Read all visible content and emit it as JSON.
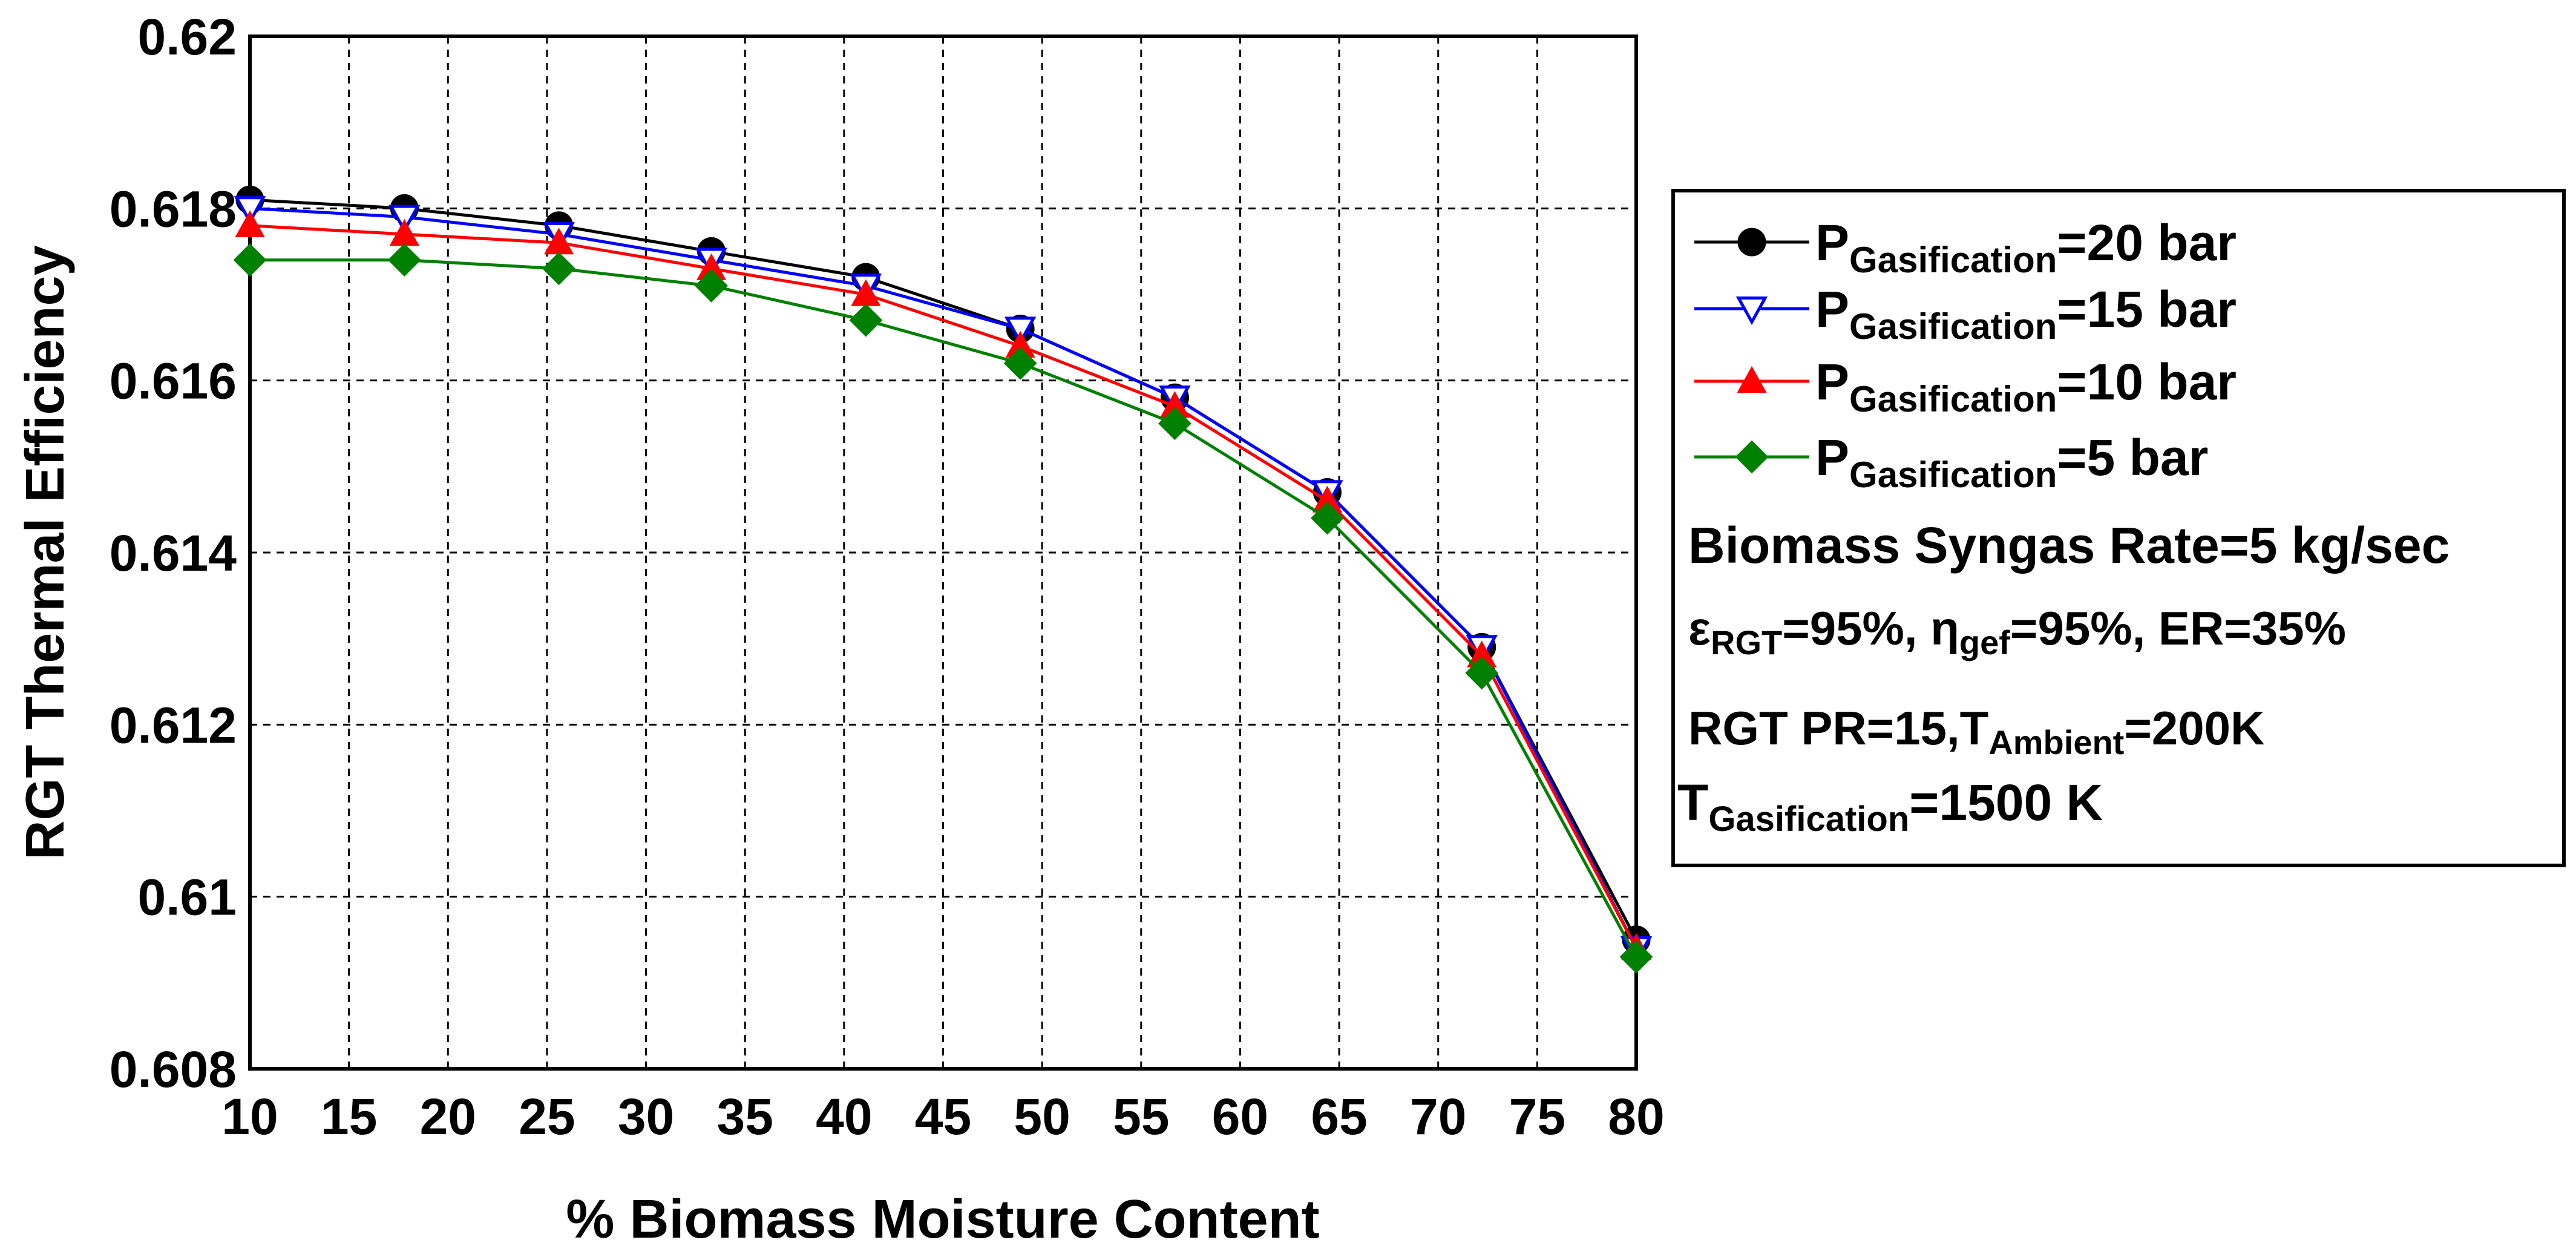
{
  "chart_data": {
    "type": "line",
    "xlabel": "% Biomass Moisture Content",
    "ylabel": "RGT Thermal Efficiency",
    "xlim": [
      10,
      80
    ],
    "ylim": [
      0.608,
      0.62
    ],
    "x_ticks": [
      "10",
      "15",
      "20",
      "25",
      "30",
      "35",
      "40",
      "45",
      "50",
      "55",
      "60",
      "65",
      "70",
      "75",
      "80"
    ],
    "y_ticks": [
      "0.608",
      "0.61",
      "0.612",
      "0.614",
      "0.616",
      "0.618",
      "0.62"
    ],
    "grid": true,
    "legend_position": "right",
    "x": [
      10,
      17.8,
      25.6,
      33.3,
      41.1,
      48.9,
      56.7,
      64.4,
      72.2,
      80
    ],
    "series": [
      {
        "name": "20 bar",
        "color": "#000000",
        "marker": "circle",
        "values": [
          0.6181,
          0.618,
          0.6178,
          0.6175,
          0.6172,
          0.6166,
          0.6158,
          0.6147,
          0.6129,
          0.6095
        ]
      },
      {
        "name": "15 bar",
        "color": "#0000ff",
        "marker": "triangle-down-open",
        "values": [
          0.618,
          0.6179,
          0.6177,
          0.6174,
          0.6171,
          0.6166,
          0.6158,
          0.6147,
          0.6129,
          0.6094
        ]
      },
      {
        "name": "10 bar",
        "color": "#ff0000",
        "marker": "triangle-up",
        "values": [
          0.6178,
          0.6177,
          0.6176,
          0.6173,
          0.617,
          0.6164,
          0.6157,
          0.6146,
          0.6128,
          0.6094
        ]
      },
      {
        "name": "5 bar",
        "color": "#008000",
        "marker": "diamond",
        "values": [
          0.6174,
          0.6174,
          0.6173,
          0.6171,
          0.6167,
          0.6162,
          0.6155,
          0.6144,
          0.6126,
          0.6093
        ]
      }
    ],
    "legend": {
      "p_symbol": "P",
      "p_sub": "Gasification",
      "series_labels": [
        "=20 bar",
        "=15 bar",
        "=10 bar",
        "=5 bar"
      ],
      "note1": "Biomass Syngas Rate=5 kg/sec",
      "note2": {
        "eps": "ε",
        "eps_sub": "RGT",
        "eps_val": "=95%, ",
        "eta": "η",
        "eta_sub": "gef",
        "eta_val": "=95%, ER=35%"
      },
      "note3": {
        "pre": "RGT PR=15,",
        "t": "T",
        "t_sub": "Ambient",
        "val": "=200K"
      },
      "note4": {
        "t": "T",
        "t_sub": "Gasification",
        "val": "=1500 K"
      }
    }
  }
}
